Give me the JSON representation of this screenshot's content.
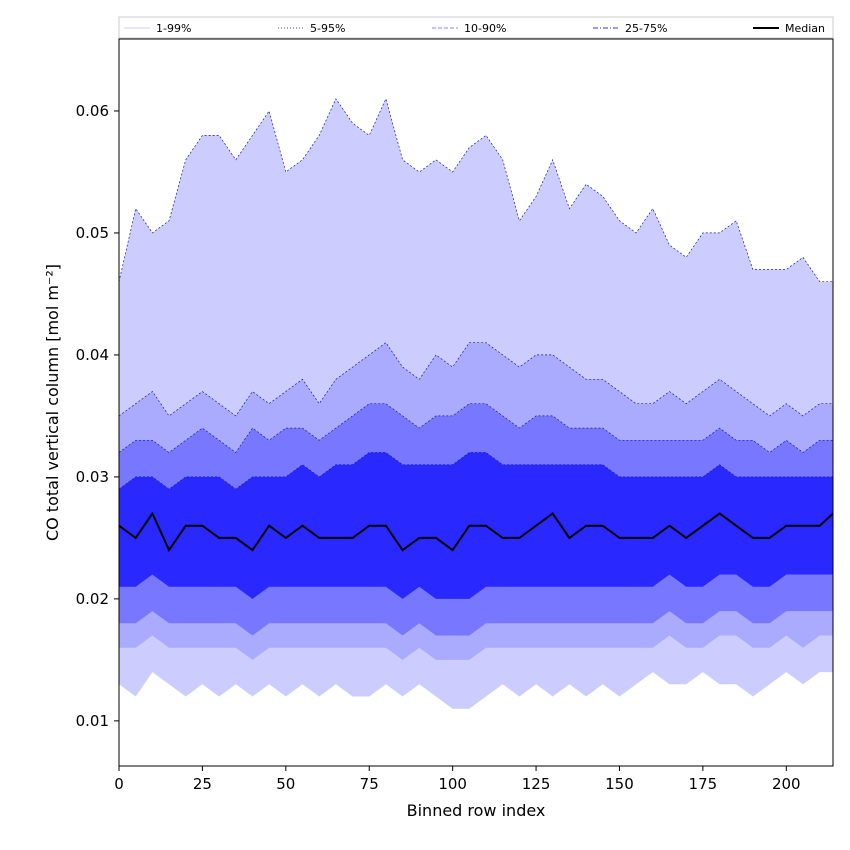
{
  "chart_data": {
    "type": "area",
    "xlabel": "Binned row index",
    "ylabel": "CO total vertical column [mol m⁻²]",
    "xlim": [
      0,
      214
    ],
    "ylim": [
      0.0063,
      0.0659
    ],
    "xticks": [
      0,
      25,
      50,
      75,
      100,
      125,
      150,
      175,
      200
    ],
    "yticks": [
      0.01,
      0.02,
      0.03,
      0.04,
      0.05,
      0.06
    ],
    "ytick_labels": [
      "0.01",
      "0.02",
      "0.03",
      "0.04",
      "0.05",
      "0.06"
    ],
    "grid": false,
    "legend": {
      "placement": "top, spanning full width",
      "entries": [
        {
          "label": "1-99%",
          "color": "#ccccff",
          "style": "solid-thin"
        },
        {
          "label": "5-95%",
          "color": "#4444cc",
          "style": "dotted"
        },
        {
          "label": "10-90%",
          "color": "#8888ee",
          "style": "dashed"
        },
        {
          "label": "25-75%",
          "color": "#3333dd",
          "style": "dashdot"
        },
        {
          "label": "Median",
          "color": "#000000",
          "style": "solid-thick"
        }
      ]
    },
    "x_step": 5,
    "series": [
      {
        "name": "1-99%",
        "fill": "#ccccff",
        "lower": [
          0.013,
          0.012,
          0.014,
          0.013,
          0.012,
          0.013,
          0.012,
          0.013,
          0.012,
          0.013,
          0.012,
          0.013,
          0.012,
          0.013,
          0.012,
          0.012,
          0.013,
          0.012,
          0.013,
          0.012,
          0.011,
          0.011,
          0.012,
          0.013,
          0.012,
          0.013,
          0.012,
          0.013,
          0.012,
          0.013,
          0.012,
          0.013,
          0.014,
          0.013,
          0.013,
          0.014,
          0.013,
          0.013,
          0.012,
          0.013,
          0.014,
          0.013,
          0.014,
          0.014
        ],
        "upper": [
          0.046,
          0.052,
          0.05,
          0.051,
          0.056,
          0.058,
          0.058,
          0.056,
          0.058,
          0.06,
          0.055,
          0.056,
          0.058,
          0.061,
          0.059,
          0.058,
          0.061,
          0.056,
          0.055,
          0.056,
          0.055,
          0.057,
          0.058,
          0.056,
          0.051,
          0.053,
          0.056,
          0.052,
          0.054,
          0.053,
          0.051,
          0.05,
          0.052,
          0.049,
          0.048,
          0.05,
          0.05,
          0.051,
          0.047,
          0.047,
          0.047,
          0.048,
          0.046,
          0.046
        ]
      },
      {
        "name": "5-95%",
        "fill": "#aaaaff",
        "lower": [
          0.016,
          0.016,
          0.017,
          0.016,
          0.016,
          0.016,
          0.016,
          0.016,
          0.015,
          0.016,
          0.016,
          0.016,
          0.016,
          0.016,
          0.016,
          0.016,
          0.016,
          0.015,
          0.016,
          0.015,
          0.015,
          0.015,
          0.016,
          0.016,
          0.016,
          0.016,
          0.016,
          0.016,
          0.016,
          0.016,
          0.016,
          0.016,
          0.016,
          0.017,
          0.016,
          0.016,
          0.017,
          0.017,
          0.016,
          0.016,
          0.017,
          0.016,
          0.017,
          0.017
        ],
        "upper": [
          0.035,
          0.036,
          0.037,
          0.035,
          0.036,
          0.037,
          0.036,
          0.035,
          0.037,
          0.036,
          0.037,
          0.038,
          0.036,
          0.038,
          0.039,
          0.04,
          0.041,
          0.039,
          0.038,
          0.04,
          0.039,
          0.041,
          0.041,
          0.04,
          0.039,
          0.04,
          0.04,
          0.039,
          0.038,
          0.038,
          0.037,
          0.036,
          0.036,
          0.037,
          0.036,
          0.037,
          0.038,
          0.037,
          0.036,
          0.035,
          0.036,
          0.035,
          0.036,
          0.036
        ]
      },
      {
        "name": "10-90%",
        "fill": "#7777ff",
        "lower": [
          0.018,
          0.018,
          0.019,
          0.018,
          0.018,
          0.018,
          0.018,
          0.018,
          0.017,
          0.018,
          0.018,
          0.018,
          0.018,
          0.018,
          0.018,
          0.018,
          0.018,
          0.017,
          0.018,
          0.017,
          0.017,
          0.017,
          0.018,
          0.018,
          0.018,
          0.018,
          0.018,
          0.018,
          0.018,
          0.018,
          0.018,
          0.018,
          0.018,
          0.019,
          0.018,
          0.018,
          0.019,
          0.019,
          0.018,
          0.018,
          0.019,
          0.019,
          0.019,
          0.019
        ],
        "upper": [
          0.032,
          0.033,
          0.033,
          0.032,
          0.033,
          0.034,
          0.033,
          0.032,
          0.034,
          0.033,
          0.034,
          0.034,
          0.033,
          0.034,
          0.035,
          0.036,
          0.036,
          0.035,
          0.034,
          0.035,
          0.035,
          0.036,
          0.036,
          0.035,
          0.034,
          0.035,
          0.035,
          0.034,
          0.034,
          0.034,
          0.033,
          0.033,
          0.033,
          0.033,
          0.033,
          0.033,
          0.034,
          0.033,
          0.033,
          0.032,
          0.033,
          0.032,
          0.033,
          0.033
        ]
      },
      {
        "name": "25-75%",
        "fill": "#2828ff",
        "lower": [
          0.021,
          0.021,
          0.022,
          0.021,
          0.021,
          0.021,
          0.021,
          0.021,
          0.02,
          0.021,
          0.021,
          0.021,
          0.021,
          0.021,
          0.021,
          0.021,
          0.021,
          0.02,
          0.021,
          0.02,
          0.02,
          0.02,
          0.021,
          0.021,
          0.021,
          0.021,
          0.021,
          0.021,
          0.021,
          0.021,
          0.021,
          0.021,
          0.021,
          0.022,
          0.021,
          0.021,
          0.022,
          0.022,
          0.021,
          0.021,
          0.022,
          0.022,
          0.022,
          0.022
        ],
        "upper": [
          0.029,
          0.03,
          0.03,
          0.029,
          0.03,
          0.03,
          0.03,
          0.029,
          0.03,
          0.03,
          0.03,
          0.031,
          0.03,
          0.031,
          0.031,
          0.032,
          0.032,
          0.031,
          0.031,
          0.031,
          0.031,
          0.032,
          0.032,
          0.031,
          0.031,
          0.031,
          0.031,
          0.031,
          0.031,
          0.031,
          0.03,
          0.03,
          0.03,
          0.03,
          0.03,
          0.03,
          0.031,
          0.03,
          0.03,
          0.03,
          0.03,
          0.03,
          0.03,
          0.03
        ]
      },
      {
        "name": "Median",
        "line": "#000000",
        "values": [
          0.026,
          0.025,
          0.027,
          0.024,
          0.026,
          0.026,
          0.025,
          0.025,
          0.024,
          0.026,
          0.025,
          0.026,
          0.025,
          0.025,
          0.025,
          0.026,
          0.026,
          0.024,
          0.025,
          0.025,
          0.024,
          0.026,
          0.026,
          0.025,
          0.025,
          0.026,
          0.027,
          0.025,
          0.026,
          0.026,
          0.025,
          0.025,
          0.025,
          0.026,
          0.025,
          0.026,
          0.027,
          0.026,
          0.025,
          0.025,
          0.026,
          0.026,
          0.026,
          0.027
        ]
      }
    ]
  }
}
